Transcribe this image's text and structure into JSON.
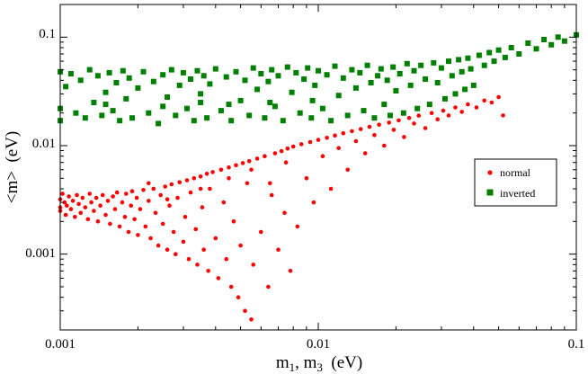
{
  "chart_data": {
    "type": "scatter",
    "xlabel_main": "m",
    "xlabel_sub1": "1",
    "xlabel_sep": ", m",
    "xlabel_sub2": "3",
    "xlabel_unit": "  (eV)",
    "ylabel": "<m>  (eV)",
    "xscale": "log",
    "yscale": "log",
    "xlim": [
      0.001,
      0.1
    ],
    "ylim": [
      0.0002,
      0.2
    ],
    "x_ticks": [
      {
        "value": 0.001,
        "label": "0.001"
      },
      {
        "value": 0.01,
        "label": "0.01"
      },
      {
        "value": 0.1,
        "label": "0.1"
      }
    ],
    "y_ticks": [
      {
        "value": 0.001,
        "label": "0.001"
      },
      {
        "value": 0.01,
        "label": "0.01"
      },
      {
        "value": 0.1,
        "label": "0.1"
      }
    ],
    "grid": false,
    "legend_position": "right",
    "series": [
      {
        "name": "normal",
        "marker": "circle",
        "color": "#ff0000",
        "points": [
          [
            0.001,
            0.0032
          ],
          [
            0.001,
            0.0027
          ],
          [
            0.001,
            0.0025
          ],
          [
            0.00102,
            0.0036
          ],
          [
            0.00104,
            0.003
          ],
          [
            0.00105,
            0.0023
          ],
          [
            0.00106,
            0.0028
          ],
          [
            0.00108,
            0.0034
          ],
          [
            0.0011,
            0.0026
          ],
          [
            0.00112,
            0.0031
          ],
          [
            0.00114,
            0.0022
          ],
          [
            0.00116,
            0.0035
          ],
          [
            0.00118,
            0.0029
          ],
          [
            0.0012,
            0.0024
          ],
          [
            0.00122,
            0.0033
          ],
          [
            0.00125,
            0.0027
          ],
          [
            0.00128,
            0.0021
          ],
          [
            0.0013,
            0.0036
          ],
          [
            0.00132,
            0.003
          ],
          [
            0.00135,
            0.0025
          ],
          [
            0.00138,
            0.0033
          ],
          [
            0.0014,
            0.002
          ],
          [
            0.00143,
            0.0028
          ],
          [
            0.00146,
            0.0035
          ],
          [
            0.0015,
            0.0023
          ],
          [
            0.00153,
            0.0031
          ],
          [
            0.00156,
            0.0019
          ],
          [
            0.0016,
            0.0034
          ],
          [
            0.00163,
            0.0026
          ],
          [
            0.00166,
            0.0037
          ],
          [
            0.0017,
            0.0018
          ],
          [
            0.00174,
            0.003
          ],
          [
            0.00178,
            0.0022
          ],
          [
            0.0018,
            0.0036
          ],
          [
            0.00184,
            0.0016
          ],
          [
            0.00188,
            0.0028
          ],
          [
            0.0019,
            0.0038
          ],
          [
            0.00194,
            0.0021
          ],
          [
            0.00198,
            0.0033
          ],
          [
            0.002,
            0.0015
          ],
          [
            0.00204,
            0.0026
          ],
          [
            0.0021,
            0.0039
          ],
          [
            0.00214,
            0.0018
          ],
          [
            0.0022,
            0.0031
          ],
          [
            0.00224,
            0.0014
          ],
          [
            0.0023,
            0.004
          ],
          [
            0.00234,
            0.0024
          ],
          [
            0.0024,
            0.0012
          ],
          [
            0.00245,
            0.0035
          ],
          [
            0.0025,
            0.0019
          ],
          [
            0.00255,
            0.0042
          ],
          [
            0.0026,
            0.0011
          ],
          [
            0.00265,
            0.0028
          ],
          [
            0.0027,
            0.0044
          ],
          [
            0.00275,
            0.0016
          ],
          [
            0.0028,
            0.001
          ],
          [
            0.00285,
            0.0033
          ],
          [
            0.0029,
            0.0046
          ],
          [
            0.003,
            0.0013
          ],
          [
            0.00305,
            0.0022
          ],
          [
            0.0031,
            0.0048
          ],
          [
            0.00315,
            0.0009
          ],
          [
            0.0032,
            0.0037
          ],
          [
            0.0033,
            0.005
          ],
          [
            0.00335,
            0.0017
          ],
          [
            0.0034,
            0.0008
          ],
          [
            0.0035,
            0.0052
          ],
          [
            0.00355,
            0.0027
          ],
          [
            0.0036,
            0.0011
          ],
          [
            0.0037,
            0.0055
          ],
          [
            0.00375,
            0.0007
          ],
          [
            0.0038,
            0.004
          ],
          [
            0.0039,
            0.0057
          ],
          [
            0.004,
            0.0014
          ],
          [
            0.0041,
            0.0006
          ],
          [
            0.0042,
            0.006
          ],
          [
            0.0043,
            0.003
          ],
          [
            0.0044,
            0.0009
          ],
          [
            0.0045,
            0.0063
          ],
          [
            0.0046,
            0.0005
          ],
          [
            0.0047,
            0.002
          ],
          [
            0.0048,
            0.0066
          ],
          [
            0.0049,
            0.0004
          ],
          [
            0.005,
            0.0012
          ],
          [
            0.0051,
            0.0069
          ],
          [
            0.0052,
            0.0003
          ],
          [
            0.0053,
            0.0045
          ],
          [
            0.0054,
            0.0072
          ],
          [
            0.0055,
            0.00025
          ],
          [
            0.0056,
            0.0008
          ],
          [
            0.0058,
            0.0076
          ],
          [
            0.006,
            0.0016
          ],
          [
            0.0062,
            0.008
          ],
          [
            0.0064,
            0.0005
          ],
          [
            0.0066,
            0.0035
          ],
          [
            0.0068,
            0.0085
          ],
          [
            0.007,
            0.0011
          ],
          [
            0.0072,
            0.0089
          ],
          [
            0.0074,
            0.0024
          ],
          [
            0.0076,
            0.0094
          ],
          [
            0.0078,
            0.0007
          ],
          [
            0.008,
            0.0098
          ],
          [
            0.0083,
            0.0018
          ],
          [
            0.0086,
            0.0103
          ],
          [
            0.009,
            0.005
          ],
          [
            0.0093,
            0.0108
          ],
          [
            0.0096,
            0.003
          ],
          [
            0.01,
            0.0113
          ],
          [
            0.0104,
            0.008
          ],
          [
            0.0108,
            0.0118
          ],
          [
            0.0112,
            0.004
          ],
          [
            0.0116,
            0.0124
          ],
          [
            0.012,
            0.0095
          ],
          [
            0.0125,
            0.013
          ],
          [
            0.013,
            0.006
          ],
          [
            0.0135,
            0.0136
          ],
          [
            0.014,
            0.011
          ],
          [
            0.0146,
            0.0142
          ],
          [
            0.0152,
            0.0085
          ],
          [
            0.0158,
            0.0149
          ],
          [
            0.0165,
            0.0125
          ],
          [
            0.0172,
            0.0156
          ],
          [
            0.018,
            0.01
          ],
          [
            0.0188,
            0.0163
          ],
          [
            0.0196,
            0.014
          ],
          [
            0.0205,
            0.0171
          ],
          [
            0.0215,
            0.012
          ],
          [
            0.0225,
            0.018
          ],
          [
            0.0235,
            0.016
          ],
          [
            0.0245,
            0.0189
          ],
          [
            0.026,
            0.0145
          ],
          [
            0.0275,
            0.02
          ],
          [
            0.029,
            0.0175
          ],
          [
            0.0305,
            0.021
          ],
          [
            0.032,
            0.019
          ],
          [
            0.034,
            0.0225
          ],
          [
            0.036,
            0.0205
          ],
          [
            0.038,
            0.024
          ],
          [
            0.041,
            0.0225
          ],
          [
            0.044,
            0.026
          ],
          [
            0.047,
            0.025
          ],
          [
            0.05,
            0.028
          ],
          [
            0.052,
            0.019
          ],
          [
            0.0022,
            0.0045
          ],
          [
            0.0026,
            0.0032
          ],
          [
            0.0035,
            0.004
          ],
          [
            0.0045,
            0.005
          ],
          [
            0.0055,
            0.006
          ],
          [
            0.0065,
            0.0045
          ],
          [
            0.0075,
            0.007
          ]
        ]
      },
      {
        "name": "inverted",
        "marker": "square",
        "color": "#008000",
        "points": [
          [
            0.001,
            0.048
          ],
          [
            0.001,
            0.022
          ],
          [
            0.001,
            0.017
          ],
          [
            0.00105,
            0.035
          ],
          [
            0.0011,
            0.046
          ],
          [
            0.00115,
            0.02
          ],
          [
            0.0012,
            0.04
          ],
          [
            0.00125,
            0.018
          ],
          [
            0.0013,
            0.05
          ],
          [
            0.00135,
            0.025
          ],
          [
            0.0014,
            0.044
          ],
          [
            0.00145,
            0.019
          ],
          [
            0.0015,
            0.031
          ],
          [
            0.00155,
            0.047
          ],
          [
            0.0016,
            0.021
          ],
          [
            0.00165,
            0.038
          ],
          [
            0.0017,
            0.017
          ],
          [
            0.00175,
            0.049
          ],
          [
            0.0018,
            0.027
          ],
          [
            0.00185,
            0.042
          ],
          [
            0.0019,
            0.018
          ],
          [
            0.002,
            0.034
          ],
          [
            0.0021,
            0.048
          ],
          [
            0.0022,
            0.02
          ],
          [
            0.0023,
            0.039
          ],
          [
            0.0024,
            0.016
          ],
          [
            0.0025,
            0.045
          ],
          [
            0.0026,
            0.028
          ],
          [
            0.0027,
            0.05
          ],
          [
            0.0028,
            0.019
          ],
          [
            0.0029,
            0.036
          ],
          [
            0.003,
            0.047
          ],
          [
            0.0031,
            0.022
          ],
          [
            0.0032,
            0.041
          ],
          [
            0.0033,
            0.017
          ],
          [
            0.0034,
            0.049
          ],
          [
            0.0035,
            0.03
          ],
          [
            0.0036,
            0.044
          ],
          [
            0.0037,
            0.018
          ],
          [
            0.0038,
            0.037
          ],
          [
            0.004,
            0.051
          ],
          [
            0.0042,
            0.021
          ],
          [
            0.0044,
            0.043
          ],
          [
            0.0046,
            0.017
          ],
          [
            0.0048,
            0.048
          ],
          [
            0.005,
            0.026
          ],
          [
            0.0052,
            0.04
          ],
          [
            0.0054,
            0.019
          ],
          [
            0.0056,
            0.052
          ],
          [
            0.0058,
            0.033
          ],
          [
            0.006,
            0.046
          ],
          [
            0.0062,
            0.018
          ],
          [
            0.0064,
            0.039
          ],
          [
            0.0066,
            0.05
          ],
          [
            0.0068,
            0.023
          ],
          [
            0.007,
            0.044
          ],
          [
            0.0073,
            0.017
          ],
          [
            0.0076,
            0.053
          ],
          [
            0.0079,
            0.031
          ],
          [
            0.0082,
            0.047
          ],
          [
            0.0085,
            0.02
          ],
          [
            0.0088,
            0.041
          ],
          [
            0.0091,
            0.052
          ],
          [
            0.0094,
            0.018
          ],
          [
            0.0097,
            0.036
          ],
          [
            0.01,
            0.049
          ],
          [
            0.0104,
            0.022
          ],
          [
            0.0108,
            0.045
          ],
          [
            0.0112,
            0.017
          ],
          [
            0.0116,
            0.054
          ],
          [
            0.012,
            0.029
          ],
          [
            0.0125,
            0.042
          ],
          [
            0.013,
            0.019
          ],
          [
            0.0135,
            0.05
          ],
          [
            0.014,
            0.034
          ],
          [
            0.0145,
            0.047
          ],
          [
            0.015,
            0.021
          ],
          [
            0.0155,
            0.055
          ],
          [
            0.016,
            0.038
          ],
          [
            0.0165,
            0.018
          ],
          [
            0.017,
            0.044
          ],
          [
            0.0175,
            0.051
          ],
          [
            0.018,
            0.024
          ],
          [
            0.0185,
            0.04
          ],
          [
            0.019,
            0.019
          ],
          [
            0.0195,
            0.053
          ],
          [
            0.02,
            0.032
          ],
          [
            0.0207,
            0.046
          ],
          [
            0.0214,
            0.02
          ],
          [
            0.0221,
            0.057
          ],
          [
            0.0228,
            0.036
          ],
          [
            0.0235,
            0.049
          ],
          [
            0.0242,
            0.022
          ],
          [
            0.025,
            0.055
          ],
          [
            0.026,
            0.041
          ],
          [
            0.027,
            0.024
          ],
          [
            0.028,
            0.058
          ],
          [
            0.029,
            0.038
          ],
          [
            0.03,
            0.052
          ],
          [
            0.031,
            0.027
          ],
          [
            0.032,
            0.06
          ],
          [
            0.033,
            0.044
          ],
          [
            0.034,
            0.03
          ],
          [
            0.035,
            0.062
          ],
          [
            0.036,
            0.048
          ],
          [
            0.037,
            0.033
          ],
          [
            0.038,
            0.064
          ],
          [
            0.039,
            0.051
          ],
          [
            0.04,
            0.036
          ],
          [
            0.042,
            0.068
          ],
          [
            0.044,
            0.055
          ],
          [
            0.046,
            0.072
          ],
          [
            0.048,
            0.06
          ],
          [
            0.05,
            0.076
          ],
          [
            0.053,
            0.065
          ],
          [
            0.056,
            0.08
          ],
          [
            0.06,
            0.07
          ],
          [
            0.065,
            0.088
          ],
          [
            0.07,
            0.078
          ],
          [
            0.075,
            0.095
          ],
          [
            0.08,
            0.085
          ],
          [
            0.085,
            0.1
          ],
          [
            0.09,
            0.092
          ],
          [
            0.1,
            0.105
          ],
          [
            0.0015,
            0.024
          ],
          [
            0.0025,
            0.023
          ],
          [
            0.0035,
            0.025
          ],
          [
            0.0045,
            0.024
          ],
          [
            0.0065,
            0.025
          ],
          [
            0.0095,
            0.026
          ]
        ]
      }
    ]
  }
}
